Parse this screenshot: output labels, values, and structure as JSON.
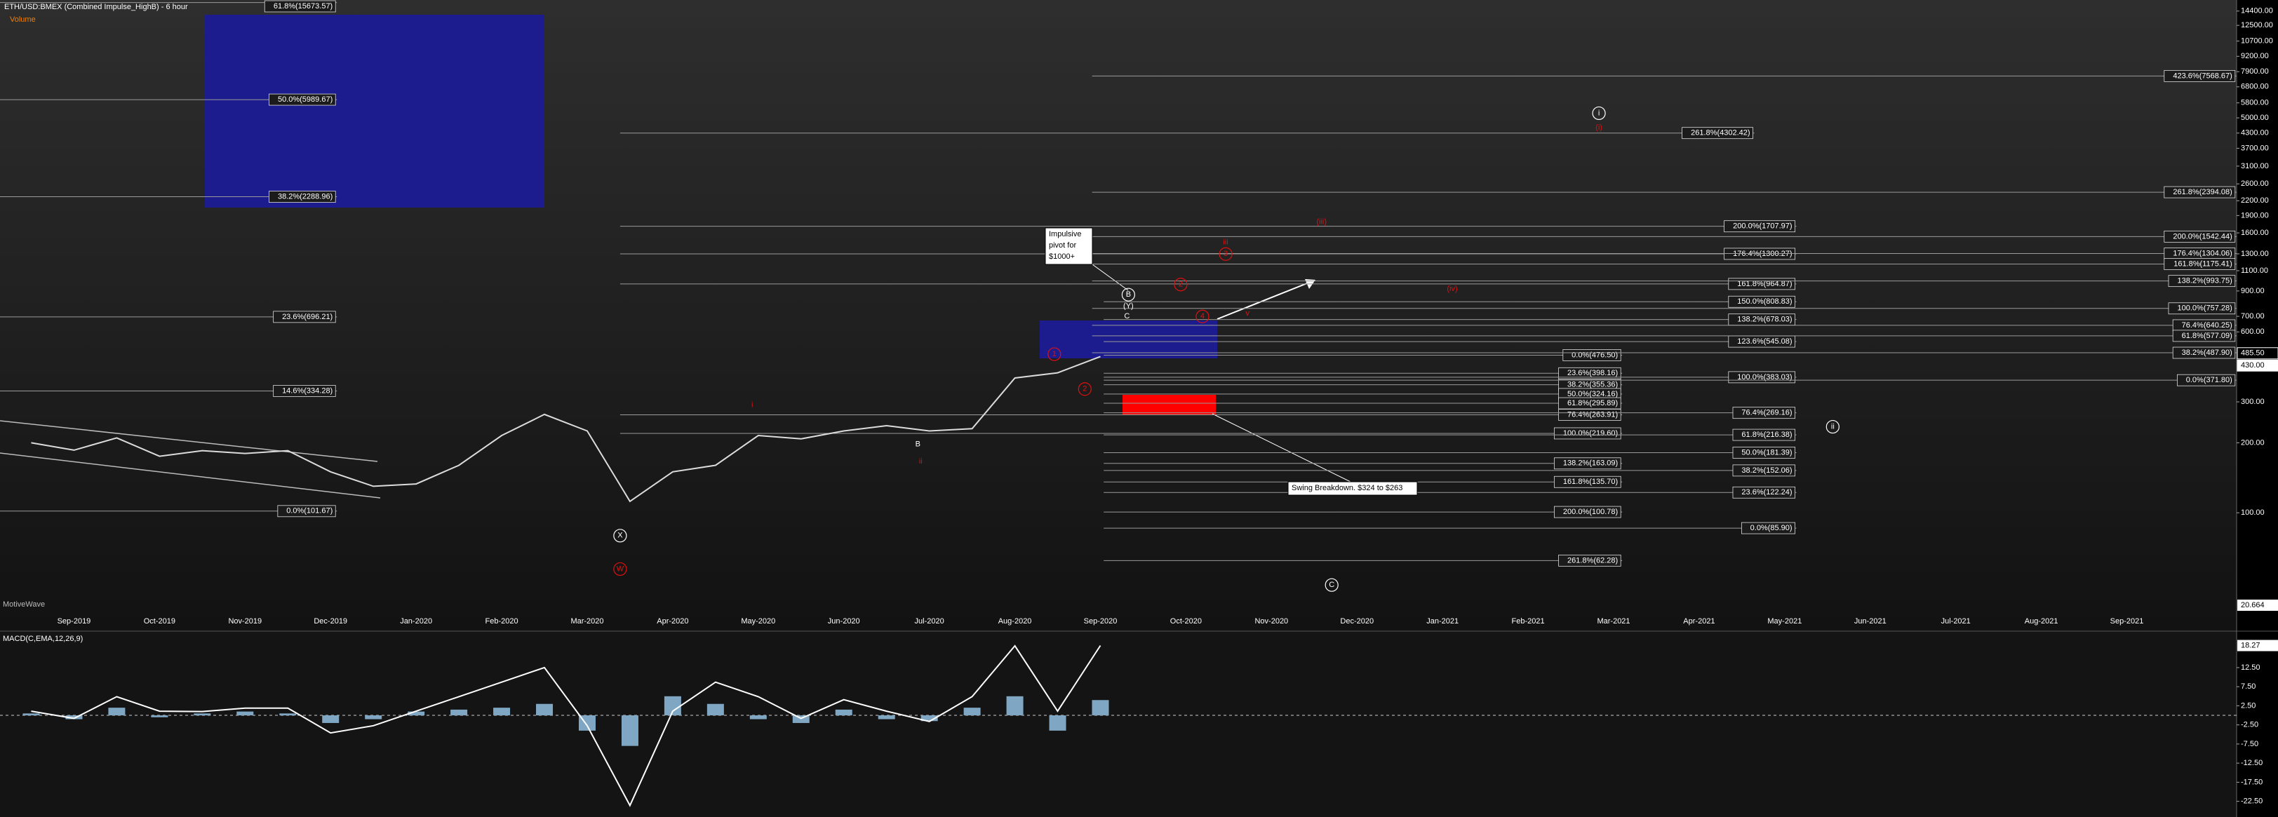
{
  "chart_data": [
    {
      "type": "line",
      "title": "ETH/USD:BMEX (Combined Impulse_HighB) - 6 hour",
      "subtitle": "Volume",
      "watermark": "MotiveWave",
      "log_scale": true,
      "categories": [
        null,
        "Sep-2019",
        null,
        "Oct-2019",
        null,
        "Nov-2019",
        null,
        "Dec-2019",
        null,
        "Jan-2020",
        null,
        "Feb-2020",
        null,
        "Mar-2020",
        null,
        "Apr-2020",
        null,
        "May-2020",
        null,
        "Jun-2020",
        null,
        "Jul-2020",
        null,
        "Aug-2020",
        null,
        "Sep-2020",
        null,
        "Oct-2020",
        null,
        "Nov-2020",
        null,
        "Dec-2020",
        null,
        "Jan-2021",
        null,
        "Feb-2021",
        null,
        "Mar-2021",
        null,
        "Apr-2021",
        null,
        "May-2021",
        null,
        "Jun-2021",
        null,
        "Jul-2021",
        null,
        "Aug-2021",
        null,
        "Sep-2021"
      ],
      "series": [
        {
          "color": "#dcdcdc",
          "values": [
            200,
            186,
            210,
            175,
            185,
            180,
            185,
            150,
            130,
            133,
            160,
            215,
            265,
            225,
            112,
            150,
            160,
            215,
            208,
            225,
            237,
            225,
            230,
            380,
            400,
            470,
            null,
            null,
            null,
            null,
            null,
            null,
            null,
            null,
            null,
            null,
            null,
            null,
            null,
            null,
            null,
            null,
            null,
            null,
            null,
            null,
            null,
            null,
            null,
            null
          ]
        }
      ],
      "ylim": [
        37.6,
        16070
      ],
      "yticks": [
        {
          "value": 14400,
          "label": "14400.00"
        },
        {
          "value": 12500,
          "label": "12500.00"
        },
        {
          "value": 10700,
          "label": "10700.00"
        },
        {
          "value": 9200,
          "label": "9200.00"
        },
        {
          "value": 7900,
          "label": "7900.00"
        },
        {
          "value": 6800,
          "label": "6800.00"
        },
        {
          "value": 5800,
          "label": "5800.00"
        },
        {
          "value": 5000,
          "label": "5000.00"
        },
        {
          "value": 4300,
          "label": "4300.00"
        },
        {
          "value": 3700,
          "label": "3700.00"
        },
        {
          "value": 3100,
          "label": "3100.00"
        },
        {
          "value": 2600,
          "label": "2600.00"
        },
        {
          "value": 2200,
          "label": "2200.00"
        },
        {
          "value": 1900,
          "label": "1900.00"
        },
        {
          "value": 1600,
          "label": "1600.00"
        },
        {
          "value": 1300,
          "label": "1300.00"
        },
        {
          "value": 1100,
          "label": "1100.00"
        },
        {
          "value": 900,
          "label": "900.00"
        },
        {
          "value": 700,
          "label": "700.00"
        },
        {
          "value": 600,
          "label": "600.00"
        },
        {
          "value": 300,
          "label": "300.00"
        },
        {
          "value": 200,
          "label": "200.00"
        },
        {
          "value": 100,
          "label": "100.00"
        }
      ],
      "price_markers": [
        {
          "value": 485.5,
          "label": "485.50"
        },
        {
          "value": 430,
          "label": "430.00"
        }
      ],
      "volume_max": 20.664,
      "levels": [
        {
          "label": "61.8%(15673.57)",
          "value": 15673.57
        },
        {
          "label": "50.0%(5989.67)",
          "value": 5989.67
        },
        {
          "label": "38.2%(2288.96)",
          "value": 2288.96
        },
        {
          "label": "23.6%(696.21)",
          "value": 696.21
        },
        {
          "label": "14.6%(334.28)",
          "value": 334.28
        },
        {
          "label": "0.0%(101.67)",
          "value": 101.67
        },
        {
          "label": "261.8%(4302.42)",
          "value": 4302.42
        },
        {
          "label": "200.0%(1707.97)",
          "value": 1707.97
        },
        {
          "label": "176.4%(1300.27)",
          "value": 1300.27
        },
        {
          "label": "161.8%(964.87)",
          "value": 964.87
        },
        {
          "label": "150.0%(808.83)",
          "value": 808.83
        },
        {
          "label": "138.2%(678.03)",
          "value": 678.03
        },
        {
          "label": "123.6%(545.08)",
          "value": 545.08
        },
        {
          "label": "0.0%(476.50)",
          "value": 476.5
        },
        {
          "label": "23.6%(398.16)",
          "value": 398.16
        },
        {
          "label": "38.2%(355.36)",
          "value": 355.36
        },
        {
          "label": "50.0%(324.16)",
          "value": 324.16
        },
        {
          "label": "61.8%(295.89)",
          "value": 295.89
        },
        {
          "label": "76.4%(263.91)",
          "value": 263.91
        },
        {
          "label": "100.0%(219.60)",
          "value": 219.6
        },
        {
          "label": "138.2%(163.09)",
          "value": 163.09
        },
        {
          "label": "161.8%(135.70)",
          "value": 135.7
        },
        {
          "label": "200.0%(100.78)",
          "value": 100.78
        },
        {
          "label": "261.8%(62.28)",
          "value": 62.28
        },
        {
          "label": "100.0%(383.03)",
          "value": 383.03
        },
        {
          "label": "76.4%(269.16)",
          "value": 269.16
        },
        {
          "label": "61.8%(216.38)",
          "value": 216.38
        },
        {
          "label": "50.0%(181.39)",
          "value": 181.39
        },
        {
          "label": "38.2%(152.06)",
          "value": 152.06
        },
        {
          "label": "23.6%(122.24)",
          "value": 122.24
        },
        {
          "label": "0.0%(85.90)",
          "value": 85.9
        },
        {
          "label": "423.6%(7568.67)",
          "value": 7568.67
        },
        {
          "label": "261.8%(2394.08)",
          "value": 2394.08
        },
        {
          "label": "200.0%(1542.44)",
          "value": 1542.44
        },
        {
          "label": "176.4%(1304.06)",
          "value": 1304.06
        },
        {
          "label": "161.8%(1175.41)",
          "value": 1175.41
        },
        {
          "label": "138.2%(993.75)",
          "value": 993.75
        },
        {
          "label": "100.0%(757.28)",
          "value": 757.28
        },
        {
          "label": "76.4%(640.25)",
          "value": 640.25
        },
        {
          "label": "61.8%(577.09)",
          "value": 577.09
        },
        {
          "label": "38.2%(487.90)",
          "value": 487.9
        },
        {
          "label": "0.0%(371.80)",
          "value": 371.8
        }
      ],
      "wave_labels": [
        "i",
        "(i)",
        "(iii)",
        "iii",
        "3",
        "2",
        "(iv)",
        "4",
        "v",
        "B",
        "(Y)",
        "C",
        "1",
        "2",
        "ii",
        "i",
        "B",
        "ii",
        "X",
        "W",
        "C"
      ],
      "callouts": [
        [
          "Impulsive",
          "pivot for",
          "$1000+"
        ],
        [
          "Swing Breakdown. $324 to $263"
        ]
      ]
    },
    {
      "type": "line",
      "title": "MACD(C,EMA,12,26,9)",
      "zero_line": true,
      "series": [
        {
          "color": "#ffffff",
          "values": [
            1.1,
            -0.8,
            4.9,
            1.1,
            1,
            1.9,
            1.9,
            -4.6,
            -2.7,
            1.1,
            4.9,
            8.7,
            12.5,
            -2.7,
            -23.6,
            1.1,
            8.7,
            4.9,
            -0.8,
            4.1,
            1.1,
            -1.6,
            4.9,
            18.2,
            1.1,
            18.27,
            null,
            null,
            null,
            null,
            null,
            null,
            null,
            null,
            null,
            null,
            null,
            null,
            null,
            null,
            null,
            null,
            null,
            null,
            null,
            null,
            null,
            null,
            null,
            null
          ]
        },
        {
          "type": "bar",
          "color": "#7fa7c4",
          "values": [
            0.5,
            -1,
            2,
            -0.5,
            0.5,
            1,
            0.5,
            -2,
            -1,
            1,
            1.5,
            2,
            3,
            -4,
            -8,
            5,
            3,
            -1,
            -2,
            1.5,
            -1,
            -1.5,
            2,
            5,
            -4,
            4,
            null,
            null,
            null,
            null,
            null,
            null,
            null,
            null,
            null,
            null,
            null,
            null,
            null,
            null,
            null,
            null,
            null,
            null,
            null,
            null,
            null,
            null,
            null,
            null
          ]
        }
      ],
      "ylim": [
        -25.5,
        21.3
      ],
      "yticks": [
        {
          "value": 12.5,
          "label": "12.50"
        },
        {
          "value": 7.5,
          "label": "7.50"
        },
        {
          "value": 2.5,
          "label": "2.50"
        },
        {
          "value": -2.5,
          "label": "-2.50"
        },
        {
          "value": -7.5,
          "label": "-7.50"
        },
        {
          "value": -12.5,
          "label": "-12.50"
        },
        {
          "value": -17.5,
          "label": "-17.50"
        },
        {
          "value": -22.5,
          "label": "-22.50"
        }
      ]
    }
  ]
}
